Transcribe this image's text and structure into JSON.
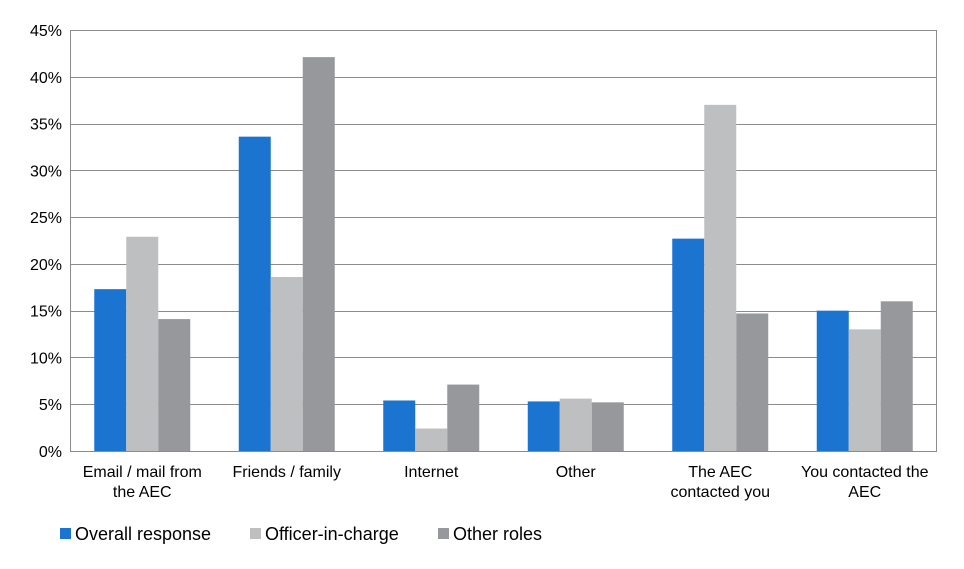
{
  "chart_data": {
    "type": "bar",
    "title": "",
    "xlabel": "",
    "ylabel": "",
    "ylim": [
      0,
      45
    ],
    "y_ticks": [
      "0%",
      "5%",
      "10%",
      "15%",
      "20%",
      "25%",
      "30%",
      "35%",
      "40%",
      "45%"
    ],
    "y_tick_values": [
      0,
      5,
      10,
      15,
      20,
      25,
      30,
      35,
      40,
      45
    ],
    "grid": true,
    "legend_position": "bottom-left",
    "categories": [
      [
        "Email / mail from",
        "the AEC"
      ],
      [
        "Friends / family"
      ],
      [
        "Internet"
      ],
      [
        "Other"
      ],
      [
        "The AEC",
        "contacted you"
      ],
      [
        "You contacted the",
        "AEC"
      ]
    ],
    "series": [
      {
        "name": "Overall response",
        "color": "#1B75D0",
        "values": [
          17.3,
          33.6,
          5.4,
          5.3,
          22.7,
          15.0
        ]
      },
      {
        "name": "Officer-in-charge",
        "color": "#BEBFC1",
        "values": [
          22.9,
          18.6,
          2.4,
          5.6,
          37.0,
          13.0
        ]
      },
      {
        "name": "Other roles",
        "color": "#97989C",
        "values": [
          14.1,
          42.1,
          7.1,
          5.2,
          14.7,
          16.0
        ]
      }
    ]
  }
}
